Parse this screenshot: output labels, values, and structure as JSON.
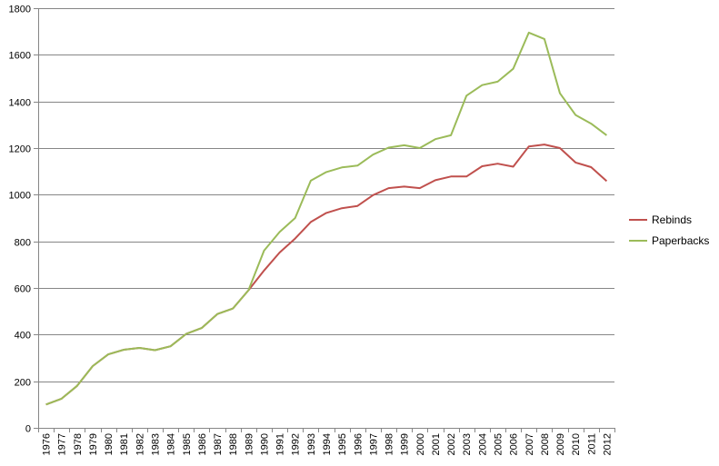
{
  "chart_data": {
    "type": "line",
    "title": "",
    "xlabel": "",
    "ylabel": "",
    "ylim": [
      0,
      1800
    ],
    "yticks": [
      0,
      200,
      400,
      600,
      800,
      1000,
      1200,
      1400,
      1600,
      1800
    ],
    "grid": true,
    "legend_position": "right",
    "categories": [
      "1976",
      "1977",
      "1978",
      "1979",
      "1980",
      "1981",
      "1982",
      "1983",
      "1984",
      "1985",
      "1986",
      "1987",
      "1988",
      "1989",
      "1990",
      "1991",
      "1992",
      "1993",
      "1994",
      "1995",
      "1996",
      "1997",
      "1998",
      "1999",
      "2000",
      "2001",
      "2002",
      "2003",
      "2004",
      "2005",
      "2006",
      "2007",
      "2008",
      "2009",
      "2010",
      "2011",
      "2012"
    ],
    "series": [
      {
        "name": "Rebinds",
        "color": "#c0504d",
        "values": [
          100,
          125,
          180,
          265,
          315,
          335,
          343,
          333,
          350,
          403,
          428,
          488,
          512,
          590,
          675,
          752,
          812,
          883,
          922,
          942,
          952,
          998,
          1028,
          1035,
          1028,
          1062,
          1078,
          1078,
          1122,
          1133,
          1120,
          1207,
          1215,
          1200,
          1138,
          1118,
          1058
        ]
      },
      {
        "name": "Paperbacks",
        "color": "#9bbb59",
        "values": [
          100,
          125,
          180,
          265,
          315,
          335,
          343,
          333,
          350,
          403,
          428,
          488,
          512,
          590,
          760,
          840,
          900,
          1060,
          1097,
          1117,
          1125,
          1172,
          1202,
          1212,
          1200,
          1238,
          1255,
          1425,
          1470,
          1485,
          1540,
          1695,
          1668,
          1435,
          1342,
          1305,
          1255
        ]
      }
    ]
  }
}
